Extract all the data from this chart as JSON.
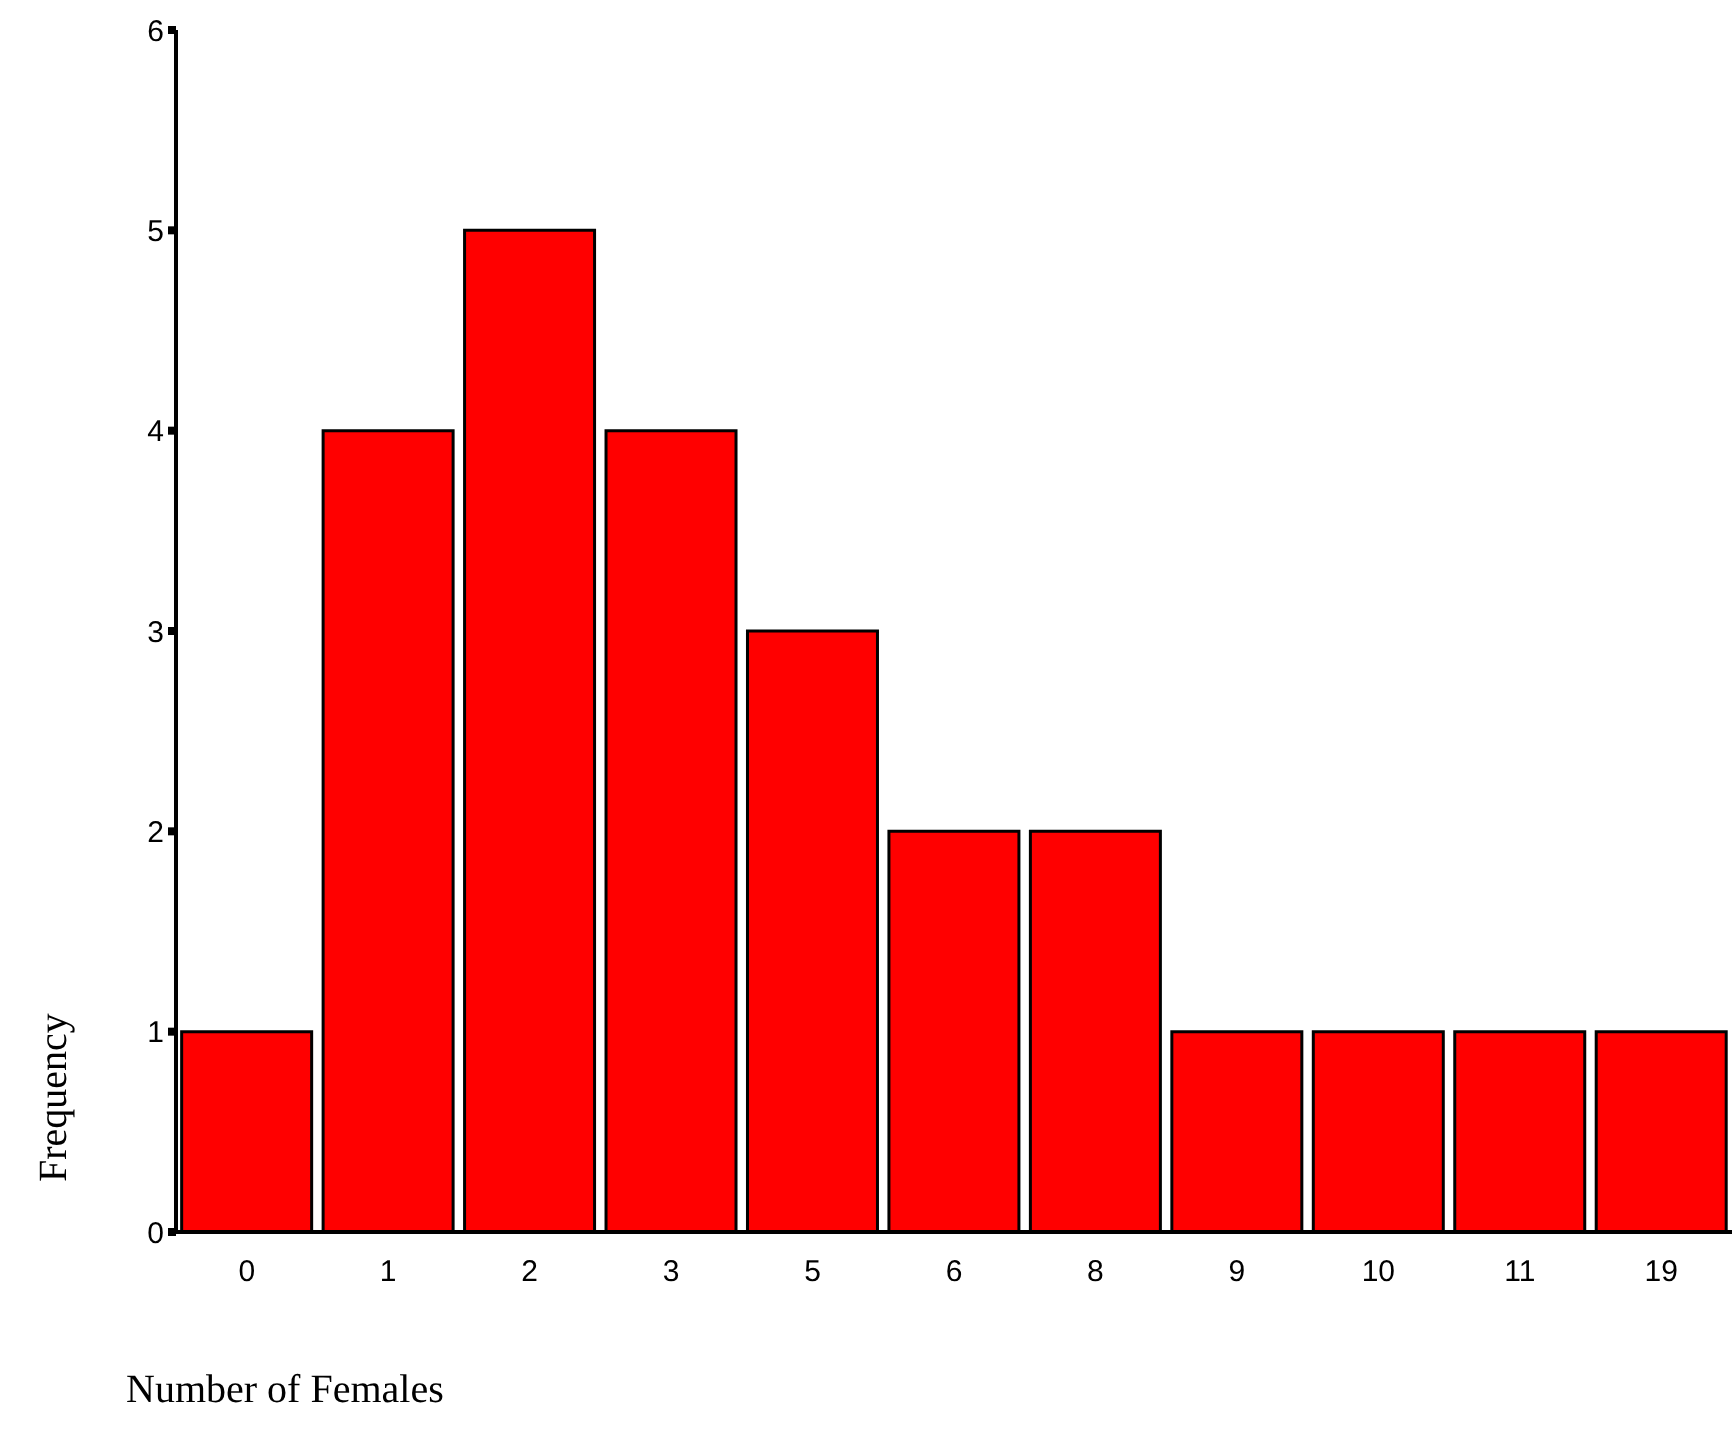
{
  "chart_data": {
    "type": "bar",
    "xlabel": "Number of Females",
    "ylabel": "Frequency",
    "categories": [
      "0",
      "1",
      "2",
      "3",
      "5",
      "6",
      "8",
      "9",
      "10",
      "11",
      "19"
    ],
    "values": [
      1,
      4,
      5,
      4,
      3,
      2,
      2,
      1,
      1,
      1,
      1
    ],
    "color": "#ff0000",
    "ylim": [
      0,
      6
    ],
    "yticks": [
      0,
      1,
      2,
      3,
      4,
      5,
      6
    ],
    "grid": false,
    "legend": false
  }
}
